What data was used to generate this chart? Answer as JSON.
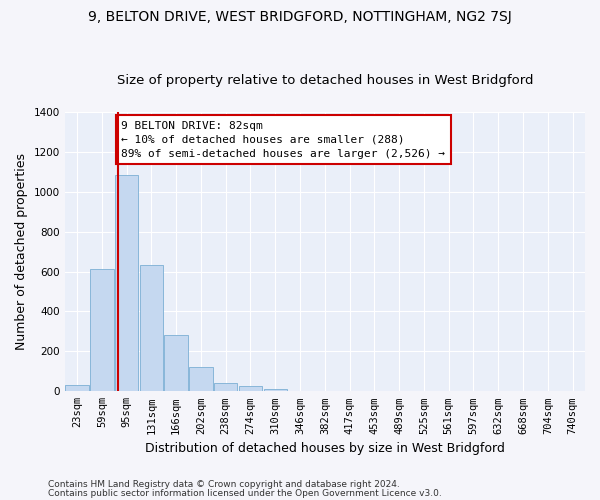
{
  "title": "9, BELTON DRIVE, WEST BRIDGFORD, NOTTINGHAM, NG2 7SJ",
  "subtitle": "Size of property relative to detached houses in West Bridgford",
  "xlabel": "Distribution of detached houses by size in West Bridgford",
  "ylabel": "Number of detached properties",
  "footnote1": "Contains HM Land Registry data © Crown copyright and database right 2024.",
  "footnote2": "Contains public sector information licensed under the Open Government Licence v3.0.",
  "categories": [
    "23sqm",
    "59sqm",
    "95sqm",
    "131sqm",
    "166sqm",
    "202sqm",
    "238sqm",
    "274sqm",
    "310sqm",
    "346sqm",
    "382sqm",
    "417sqm",
    "453sqm",
    "489sqm",
    "525sqm",
    "561sqm",
    "597sqm",
    "632sqm",
    "668sqm",
    "704sqm",
    "740sqm"
  ],
  "bar_values": [
    30,
    615,
    1085,
    635,
    280,
    120,
    40,
    25,
    10,
    0,
    0,
    0,
    0,
    0,
    0,
    0,
    0,
    0,
    0,
    0,
    0
  ],
  "bar_color": "#c5d8f0",
  "bar_edge_color": "#7bafd4",
  "background_color": "#eaeff9",
  "grid_color": "#d0d8ea",
  "fig_bg_color": "#f5f5fa",
  "ylim": [
    0,
    1400
  ],
  "yticks": [
    0,
    200,
    400,
    600,
    800,
    1000,
    1200,
    1400
  ],
  "vline_x_index": 1.64,
  "vline_color": "#cc0000",
  "annotation_box_edge_color": "#cc0000",
  "property_label": "9 BELTON DRIVE: 82sqm",
  "annotation_line1": "← 10% of detached houses are smaller (288)",
  "annotation_line2": "89% of semi-detached houses are larger (2,526) →",
  "title_fontsize": 10,
  "subtitle_fontsize": 9.5,
  "axis_label_fontsize": 9,
  "tick_fontsize": 7.5,
  "annotation_fontsize": 8,
  "footnote_fontsize": 6.5
}
